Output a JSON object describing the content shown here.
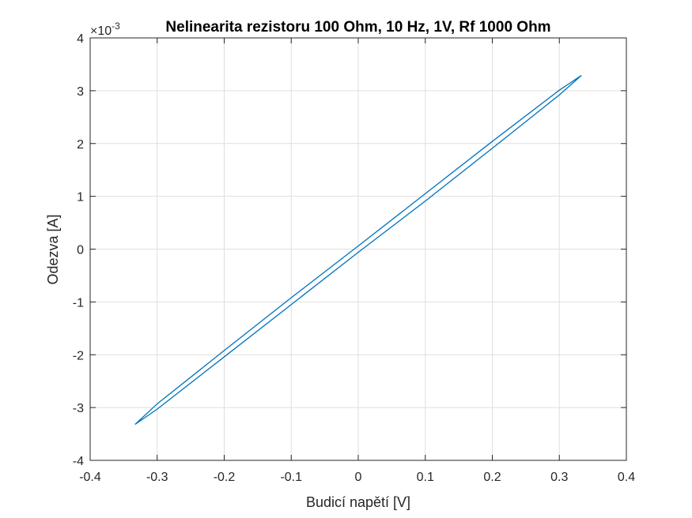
{
  "chart_data": {
    "type": "line",
    "title": "Nelinearita rezistoru 100 Ohm, 10 Hz, 1V, Rf 1000 Ohm",
    "xlabel": "Budicí napětí [V]",
    "ylabel": "Odezva [A]",
    "xlim": [
      -0.4,
      0.4
    ],
    "ylim": [
      -4,
      4
    ],
    "x_ticks": [
      -0.4,
      -0.3,
      -0.2,
      -0.1,
      0,
      0.1,
      0.2,
      0.3,
      0.4
    ],
    "x_tick_labels": [
      "-0.4",
      "-0.3",
      "-0.2",
      "-0.1",
      "0",
      "0.1",
      "0.2",
      "0.3",
      "0.4"
    ],
    "y_ticks": [
      -4,
      -3,
      -2,
      -1,
      0,
      1,
      2,
      3,
      4
    ],
    "y_tick_labels": [
      "-4",
      "-3",
      "-2",
      "-1",
      "0",
      "1",
      "2",
      "3",
      "4"
    ],
    "y_exponent_label": "×10",
    "y_exponent_power": "-3",
    "grid": true,
    "line_color": "#0072BD",
    "series": [
      {
        "x": [
          -0.333,
          -0.3,
          -0.2,
          -0.1,
          0,
          0.1,
          0.2,
          0.3,
          0.333,
          0.3,
          0.2,
          0.1,
          0,
          -0.1,
          -0.2,
          -0.3,
          -0.333
        ],
        "y": [
          -3.32,
          -2.93,
          -1.92,
          -0.92,
          0.06,
          1.05,
          2.04,
          3.01,
          3.29,
          2.92,
          1.91,
          0.91,
          -0.06,
          -1.05,
          -2.04,
          -3.03,
          -3.32
        ]
      }
    ]
  }
}
